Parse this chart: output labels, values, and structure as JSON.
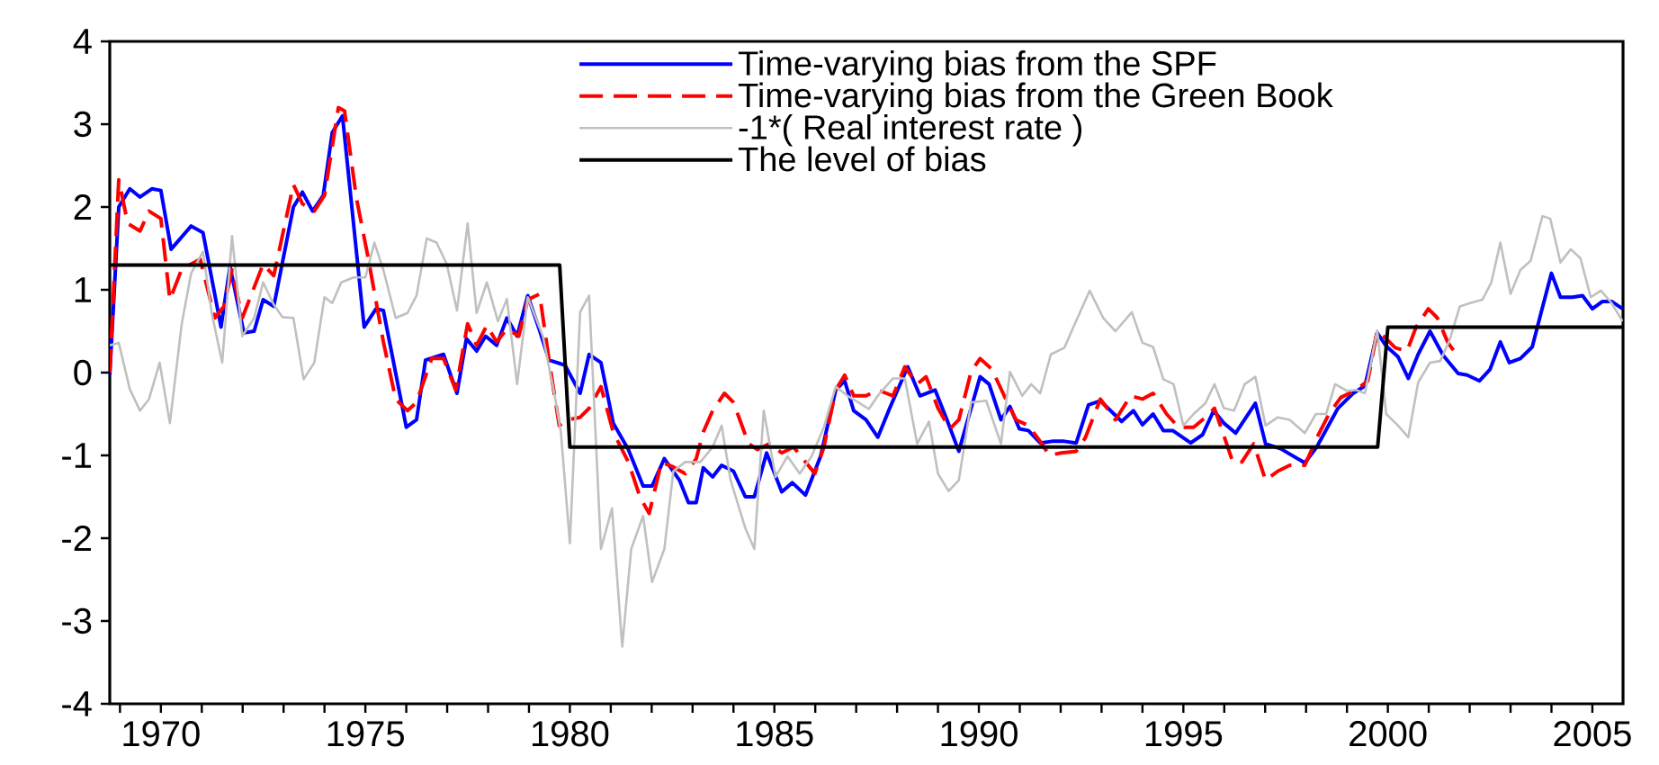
{
  "chart_data": {
    "type": "line",
    "legend": "top",
    "xlim": [
      1968.75,
      2005.75
    ],
    "ylim": [
      -4,
      4
    ],
    "yticks": [
      -4,
      -3,
      -2,
      -1,
      0,
      1,
      2,
      3,
      4
    ],
    "xticks": [
      {
        "value": 1969,
        "label": null
      },
      1970,
      {
        "value": 1971,
        "label": null
      },
      {
        "value": 1972,
        "label": null
      },
      {
        "value": 1973,
        "label": null
      },
      {
        "value": 1974,
        "label": null
      },
      1975,
      {
        "value": 1976,
        "label": null
      },
      {
        "value": 1977,
        "label": null
      },
      {
        "value": 1978,
        "label": null
      },
      {
        "value": 1979,
        "label": null
      },
      1980,
      {
        "value": 1981,
        "label": null
      },
      {
        "value": 1982,
        "label": null
      },
      {
        "value": 1983,
        "label": null
      },
      {
        "value": 1984,
        "label": null
      },
      1985,
      {
        "value": 1986,
        "label": null
      },
      {
        "value": 1987,
        "label": null
      },
      {
        "value": 1988,
        "label": null
      },
      {
        "value": 1989,
        "label": null
      },
      1990,
      {
        "value": 1991,
        "label": null
      },
      {
        "value": 1992,
        "label": null
      },
      {
        "value": 1993,
        "label": null
      },
      {
        "value": 1994,
        "label": null
      },
      1995,
      {
        "value": 1996,
        "label": null
      },
      {
        "value": 1997,
        "label": null
      },
      {
        "value": 1998,
        "label": null
      },
      {
        "value": 1999,
        "label": null
      },
      2000,
      {
        "value": 2001,
        "label": null
      },
      {
        "value": 2002,
        "label": null
      },
      {
        "value": 2003,
        "label": null
      },
      {
        "value": 2004,
        "label": null
      },
      2005
    ],
    "series": [
      {
        "name": "Time-varying bias from the SPF",
        "color": "#0000ff",
        "line_style": "solid",
        "x": [
          1968.75,
          1968.97,
          1969.24,
          1969.49,
          1969.78,
          1970.0,
          1970.25,
          1970.74,
          1971.03,
          1971.47,
          1971.69,
          1972.03,
          1972.28,
          1972.5,
          1972.76,
          1973.24,
          1973.46,
          1973.71,
          1973.97,
          1974.19,
          1974.44,
          1974.97,
          1975.26,
          1975.44,
          1976.0,
          1976.25,
          1976.47,
          1976.91,
          1977.24,
          1977.47,
          1977.72,
          1977.94,
          1978.21,
          1978.46,
          1978.71,
          1978.97,
          1979.26,
          1979.49,
          1979.88,
          1980.25,
          1980.47,
          1980.76,
          1981.06,
          1981.43,
          1981.79,
          1982.01,
          1982.31,
          1982.68,
          1982.9,
          1983.09,
          1983.26,
          1983.49,
          1983.71,
          1984.0,
          1984.29,
          1984.51,
          1984.81,
          1985.18,
          1985.44,
          1985.76,
          1986.13,
          1986.5,
          1986.72,
          1986.94,
          1987.24,
          1987.53,
          1987.82,
          1988.26,
          1988.56,
          1988.93,
          1989.22,
          1989.51,
          1989.81,
          1990.03,
          1990.25,
          1990.54,
          1990.76,
          1990.99,
          1991.21,
          1991.5,
          1991.79,
          1992.09,
          1992.38,
          1992.68,
          1992.97,
          1993.49,
          1993.78,
          1994.0,
          1994.26,
          1994.51,
          1994.74,
          1995.18,
          1995.47,
          1995.74,
          1995.99,
          1996.28,
          1996.76,
          1997.01,
          1997.38,
          1997.97,
          1998.26,
          1998.78,
          1999.15,
          1999.44,
          1999.74,
          1999.96,
          2000.25,
          2000.5,
          2000.74,
          2001.03,
          2001.35,
          2001.72,
          2001.94,
          2002.24,
          2002.5,
          2002.75,
          2002.97,
          2003.24,
          2003.53,
          2003.75,
          2004.0,
          2004.22,
          2004.51,
          2004.76,
          2005.0,
          2005.25,
          2005.47,
          2005.74
        ],
        "values": [
          -0.03,
          2.0,
          2.22,
          2.12,
          2.22,
          2.2,
          1.49,
          1.77,
          1.69,
          0.55,
          1.28,
          0.48,
          0.5,
          0.88,
          0.8,
          2.0,
          2.18,
          1.95,
          2.14,
          2.9,
          3.1,
          0.55,
          0.77,
          0.75,
          -0.66,
          -0.57,
          0.15,
          0.22,
          -0.25,
          0.41,
          0.26,
          0.44,
          0.33,
          0.66,
          0.44,
          0.93,
          0.51,
          0.15,
          0.09,
          -0.25,
          0.22,
          0.12,
          -0.61,
          -0.93,
          -1.37,
          -1.37,
          -1.04,
          -1.3,
          -1.57,
          -1.57,
          -1.15,
          -1.26,
          -1.12,
          -1.19,
          -1.5,
          -1.5,
          -0.97,
          -1.44,
          -1.33,
          -1.48,
          -1.01,
          -0.21,
          -0.1,
          -0.46,
          -0.57,
          -0.78,
          -0.43,
          0.07,
          -0.28,
          -0.21,
          -0.57,
          -0.95,
          -0.43,
          -0.05,
          -0.14,
          -0.57,
          -0.41,
          -0.68,
          -0.7,
          -0.85,
          -0.83,
          -0.83,
          -0.85,
          -0.39,
          -0.34,
          -0.59,
          -0.46,
          -0.63,
          -0.5,
          -0.7,
          -0.7,
          -0.85,
          -0.75,
          -0.46,
          -0.61,
          -0.73,
          -0.37,
          -0.86,
          -0.92,
          -1.09,
          -0.9,
          -0.43,
          -0.25,
          -0.16,
          0.48,
          0.32,
          0.19,
          -0.07,
          0.22,
          0.5,
          0.21,
          -0.01,
          -0.03,
          -0.1,
          0.04,
          0.37,
          0.12,
          0.17,
          0.31,
          0.73,
          1.2,
          0.91,
          0.91,
          0.93,
          0.77,
          0.86,
          0.86,
          0.77
        ]
      },
      {
        "name": "Time-varying bias from the Green Book",
        "color": "#ff0000",
        "line_style": "dashed",
        "x": [
          1968.75,
          1968.97,
          1969.19,
          1969.49,
          1969.71,
          1970.0,
          1970.22,
          1970.51,
          1970.96,
          1971.32,
          1971.54,
          1971.74,
          1971.99,
          1972.5,
          1972.76,
          1973.24,
          1973.46,
          1973.75,
          1974.0,
          1974.34,
          1974.49,
          1974.78,
          1975.07,
          1975.44,
          1975.74,
          1976.03,
          1976.25,
          1976.62,
          1976.91,
          1977.21,
          1977.5,
          1977.72,
          1977.97,
          1978.21,
          1978.46,
          1978.75,
          1978.97,
          1979.26,
          1979.49,
          1979.74,
          1979.96,
          1980.25,
          1980.47,
          1980.76,
          1981.06,
          1981.43,
          1981.72,
          1981.94,
          1982.24,
          1982.53,
          1982.82,
          1983.09,
          1983.26,
          1983.49,
          1983.78,
          1984.0,
          1984.37,
          1984.59,
          1984.88,
          1985.18,
          1985.47,
          1985.76,
          1985.99,
          1986.21,
          1986.5,
          1986.72,
          1986.94,
          1987.24,
          1987.53,
          1987.9,
          1988.19,
          1988.49,
          1988.71,
          1989.0,
          1989.29,
          1989.51,
          1989.81,
          1990.03,
          1990.32,
          1990.62,
          1990.91,
          1991.21,
          1991.5,
          1991.72,
          1992.01,
          1992.38,
          1992.6,
          1992.97,
          1993.34,
          1993.71,
          1994.0,
          1994.26,
          1994.59,
          1994.88,
          1995.25,
          1995.54,
          1995.76,
          1996.21,
          1996.43,
          1996.72,
          1997.01,
          1997.31,
          1997.6,
          1997.97,
          1998.26,
          1998.56,
          1998.85,
          1999.22,
          1999.51,
          1999.74,
          1999.96,
          2000.18,
          2000.47,
          2000.69,
          2000.99,
          2001.21,
          2001.47,
          2001.72
        ],
        "values": [
          0.0,
          2.33,
          1.8,
          1.71,
          1.95,
          1.86,
          0.88,
          1.25,
          1.37,
          0.66,
          0.8,
          1.24,
          0.66,
          1.31,
          1.17,
          2.27,
          2.04,
          1.95,
          2.14,
          3.2,
          3.16,
          2.11,
          1.38,
          0.37,
          -0.32,
          -0.46,
          -0.36,
          0.17,
          0.17,
          -0.21,
          0.59,
          0.33,
          0.57,
          0.37,
          0.53,
          0.44,
          0.88,
          0.95,
          0.15,
          -0.64,
          -0.57,
          -0.54,
          -0.43,
          -0.17,
          -0.72,
          -1.08,
          -1.51,
          -1.7,
          -1.08,
          -1.14,
          -1.22,
          -1.04,
          -0.72,
          -0.46,
          -0.25,
          -0.36,
          -0.86,
          -0.93,
          -0.86,
          -0.97,
          -0.9,
          -1.08,
          -1.22,
          -0.9,
          -0.21,
          -0.03,
          -0.28,
          -0.28,
          -0.21,
          -0.28,
          0.07,
          -0.14,
          -0.05,
          -0.43,
          -0.68,
          -0.57,
          0.01,
          0.17,
          0.04,
          -0.28,
          -0.57,
          -0.64,
          -0.83,
          -1.0,
          -0.97,
          -0.95,
          -0.79,
          -0.32,
          -0.57,
          -0.28,
          -0.32,
          -0.25,
          -0.5,
          -0.66,
          -0.66,
          -0.54,
          -0.43,
          -1.08,
          -1.08,
          -0.86,
          -1.3,
          -1.19,
          -1.12,
          -1.12,
          -0.79,
          -0.5,
          -0.3,
          -0.21,
          -0.1,
          0.51,
          0.41,
          0.3,
          0.26,
          0.55,
          0.77,
          0.66,
          0.36,
          0.19
        ]
      },
      {
        "name": "-1*( Real interest rate )",
        "color": "#c0c0c0",
        "line_style": "solid",
        "x": [
          1968.75,
          1968.97,
          1969.24,
          1969.49,
          1969.71,
          1969.97,
          1970.22,
          1970.51,
          1970.74,
          1971.03,
          1971.25,
          1971.5,
          1971.74,
          1971.99,
          1972.28,
          1972.5,
          1972.76,
          1972.97,
          1973.24,
          1973.49,
          1973.75,
          1974.0,
          1974.19,
          1974.41,
          1974.71,
          1975.0,
          1975.22,
          1975.44,
          1975.74,
          1976.03,
          1976.25,
          1976.5,
          1976.74,
          1976.99,
          1977.24,
          1977.5,
          1977.72,
          1977.97,
          1978.24,
          1978.46,
          1978.71,
          1978.97,
          1979.34,
          1979.63,
          1979.78,
          1980.0,
          1980.25,
          1980.47,
          1980.76,
          1981.03,
          1981.28,
          1981.5,
          1981.79,
          1982.01,
          1982.31,
          1982.53,
          1982.82,
          1983.19,
          1983.49,
          1983.71,
          1983.93,
          1984.29,
          1984.51,
          1984.74,
          1985.03,
          1985.32,
          1985.62,
          1985.91,
          1986.21,
          1986.5,
          1986.79,
          1987.09,
          1987.31,
          1987.53,
          1987.9,
          1988.19,
          1988.49,
          1988.78,
          1989.0,
          1989.26,
          1989.51,
          1989.81,
          1990.18,
          1990.54,
          1990.76,
          1991.06,
          1991.28,
          1991.5,
          1991.76,
          1992.09,
          1992.31,
          1992.71,
          1993.04,
          1993.34,
          1993.74,
          1994.0,
          1994.26,
          1994.51,
          1994.76,
          1995.0,
          1995.25,
          1995.54,
          1995.76,
          1995.99,
          1996.24,
          1996.5,
          1996.76,
          1997.01,
          1997.31,
          1997.6,
          1997.97,
          1998.24,
          1998.49,
          1998.71,
          1999.0,
          1999.22,
          1999.44,
          1999.74,
          1999.96,
          2000.25,
          2000.5,
          2000.74,
          2001.03,
          2001.28,
          2001.5,
          2001.76,
          2002.01,
          2002.31,
          2002.53,
          2002.75,
          2003.0,
          2003.24,
          2003.49,
          2003.78,
          2003.97,
          2004.22,
          2004.47,
          2004.71,
          2004.96,
          2005.21,
          2005.47,
          2005.74
        ],
        "values": [
          0.33,
          0.36,
          -0.2,
          -0.46,
          -0.32,
          0.12,
          -0.61,
          0.59,
          1.2,
          1.46,
          0.7,
          0.12,
          1.65,
          0.44,
          0.66,
          1.09,
          0.82,
          0.67,
          0.66,
          -0.08,
          0.12,
          0.91,
          0.84,
          1.09,
          1.15,
          1.15,
          1.57,
          1.24,
          0.66,
          0.72,
          0.93,
          1.62,
          1.57,
          1.31,
          0.75,
          1.8,
          0.72,
          1.09,
          0.62,
          0.89,
          -0.14,
          0.91,
          0.44,
          -0.28,
          -0.72,
          -2.06,
          0.73,
          0.93,
          -2.13,
          -1.64,
          -3.31,
          -2.13,
          -1.73,
          -2.53,
          -2.13,
          -1.19,
          -1.08,
          -1.08,
          -0.9,
          -0.64,
          -1.3,
          -1.88,
          -2.13,
          -0.46,
          -1.26,
          -1.01,
          -1.22,
          -1.01,
          -0.66,
          -0.17,
          -0.28,
          -0.37,
          -0.44,
          -0.28,
          -0.07,
          -0.07,
          -0.86,
          -0.59,
          -1.22,
          -1.43,
          -1.3,
          -0.36,
          -0.34,
          -0.86,
          0.01,
          -0.28,
          -0.14,
          -0.25,
          0.22,
          0.3,
          0.55,
          0.99,
          0.66,
          0.5,
          0.73,
          0.36,
          0.31,
          -0.08,
          -0.14,
          -0.64,
          -0.5,
          -0.37,
          -0.14,
          -0.43,
          -0.46,
          -0.14,
          -0.05,
          -0.64,
          -0.54,
          -0.57,
          -0.73,
          -0.5,
          -0.5,
          -0.14,
          -0.22,
          -0.21,
          -0.25,
          0.51,
          -0.5,
          -0.64,
          -0.78,
          -0.12,
          0.12,
          0.14,
          0.38,
          0.8,
          0.84,
          0.88,
          1.09,
          1.57,
          0.95,
          1.24,
          1.35,
          1.89,
          1.86,
          1.33,
          1.49,
          1.38,
          0.91,
          0.99,
          0.84,
          0.62
        ]
      },
      {
        "name": "The level of bias",
        "color": "#000000",
        "line_style": "solid",
        "x": [
          1968.75,
          1979.75,
          1980.0,
          1999.75,
          2000.0,
          2005.75
        ],
        "values": [
          1.3,
          1.3,
          -0.9,
          -0.9,
          0.55,
          0.55
        ]
      }
    ]
  }
}
